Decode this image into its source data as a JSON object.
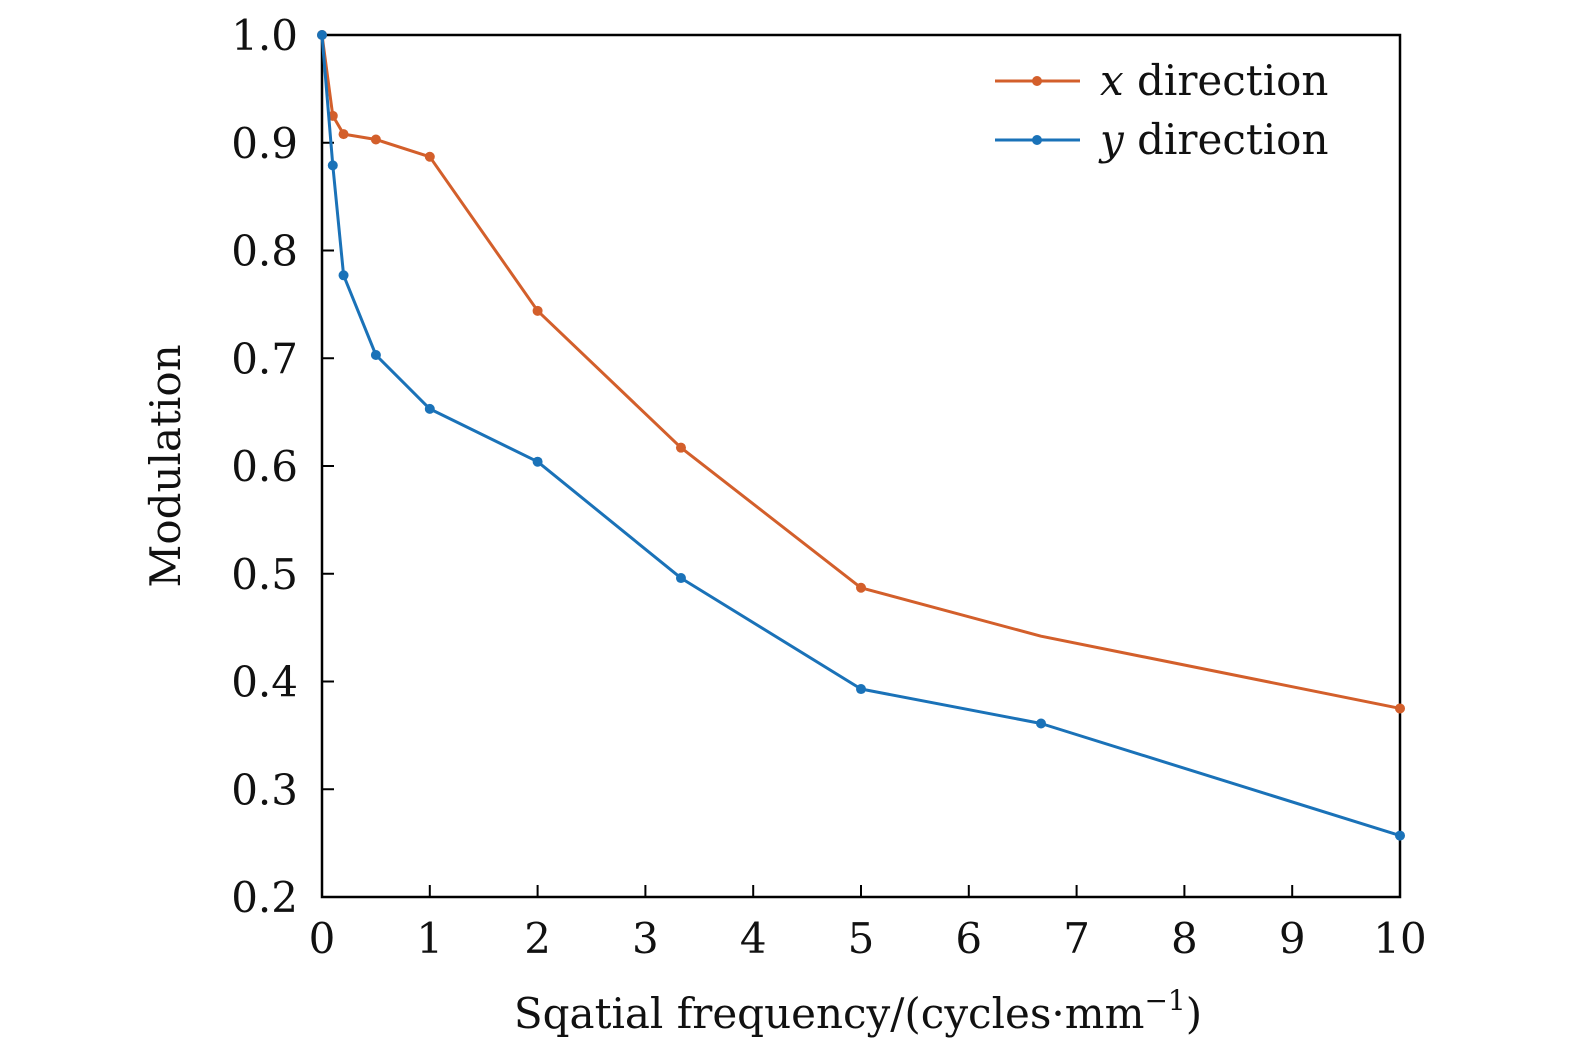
{
  "chart_data": {
    "type": "line",
    "title": "",
    "xlabel": "Sqatial frequency/(cycles·mm",
    "xlabel_sup": "−1",
    "xlabel_close": ")",
    "ylabel": "Modulation",
    "xlim": [
      0,
      10
    ],
    "ylim": [
      0.2,
      1.0
    ],
    "xticks": [
      0,
      1,
      2,
      3,
      4,
      5,
      6,
      7,
      8,
      9,
      10
    ],
    "xtick_labels": [
      "0",
      "1",
      "2",
      "3",
      "4",
      "5",
      "6",
      "7",
      "8",
      "9",
      "10"
    ],
    "yticks": [
      0.2,
      0.3,
      0.4,
      0.5,
      0.6,
      0.7,
      0.8,
      0.9,
      1.0
    ],
    "ytick_labels": [
      "0.2",
      "0.3",
      "0.4",
      "0.5",
      "0.6",
      "0.7",
      "0.8",
      "0.9",
      "1.0"
    ],
    "grid": false,
    "legend_position": "top-right",
    "series": [
      {
        "name": "x direction",
        "var": "x",
        "suffix": " direction",
        "color": "#D35F2B",
        "x": [
          0,
          0.1,
          0.2,
          0.5,
          1,
          2,
          3.33,
          5,
          6.67,
          10
        ],
        "y": [
          1.0,
          0.925,
          0.908,
          0.903,
          0.887,
          0.744,
          0.617,
          0.487,
          0.442,
          0.375
        ],
        "markers": [
          true,
          true,
          true,
          true,
          true,
          true,
          true,
          true,
          false,
          true
        ]
      },
      {
        "name": "y direction",
        "var": "y",
        "suffix": " direction",
        "color": "#1A72B8",
        "x": [
          0,
          0.1,
          0.2,
          0.5,
          1,
          2,
          3.33,
          5,
          6.67,
          10
        ],
        "y": [
          1.0,
          0.879,
          0.777,
          0.703,
          0.653,
          0.604,
          0.496,
          0.393,
          0.361,
          0.257
        ],
        "markers": [
          true,
          true,
          true,
          true,
          true,
          true,
          true,
          true,
          true,
          true
        ]
      }
    ]
  }
}
